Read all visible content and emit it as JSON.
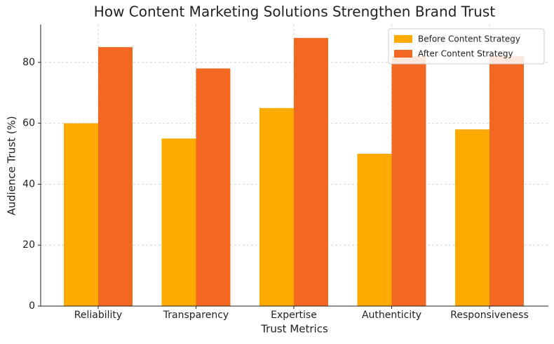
{
  "chart_data": {
    "type": "bar",
    "title": "How Content Marketing Solutions Strengthen Brand Trust",
    "x_label": "Trust Metrics",
    "y_label": "Audience Trust (%)",
    "categories": [
      "Reliability",
      "Transparency",
      "Expertise",
      "Authenticity",
      "Responsiveness"
    ],
    "series": [
      {
        "name": "Before Content Strategy",
        "color": "#ffaa00",
        "values": [
          60,
          55,
          65,
          50,
          58
        ]
      },
      {
        "name": "After Content Strategy",
        "color": "#f26722",
        "values": [
          85,
          78,
          88,
          82,
          82
        ]
      }
    ],
    "ylim": [
      0,
      92.4
    ],
    "yticks": [
      0,
      20,
      40,
      60,
      80
    ],
    "grid": true,
    "legend": "upper right"
  }
}
